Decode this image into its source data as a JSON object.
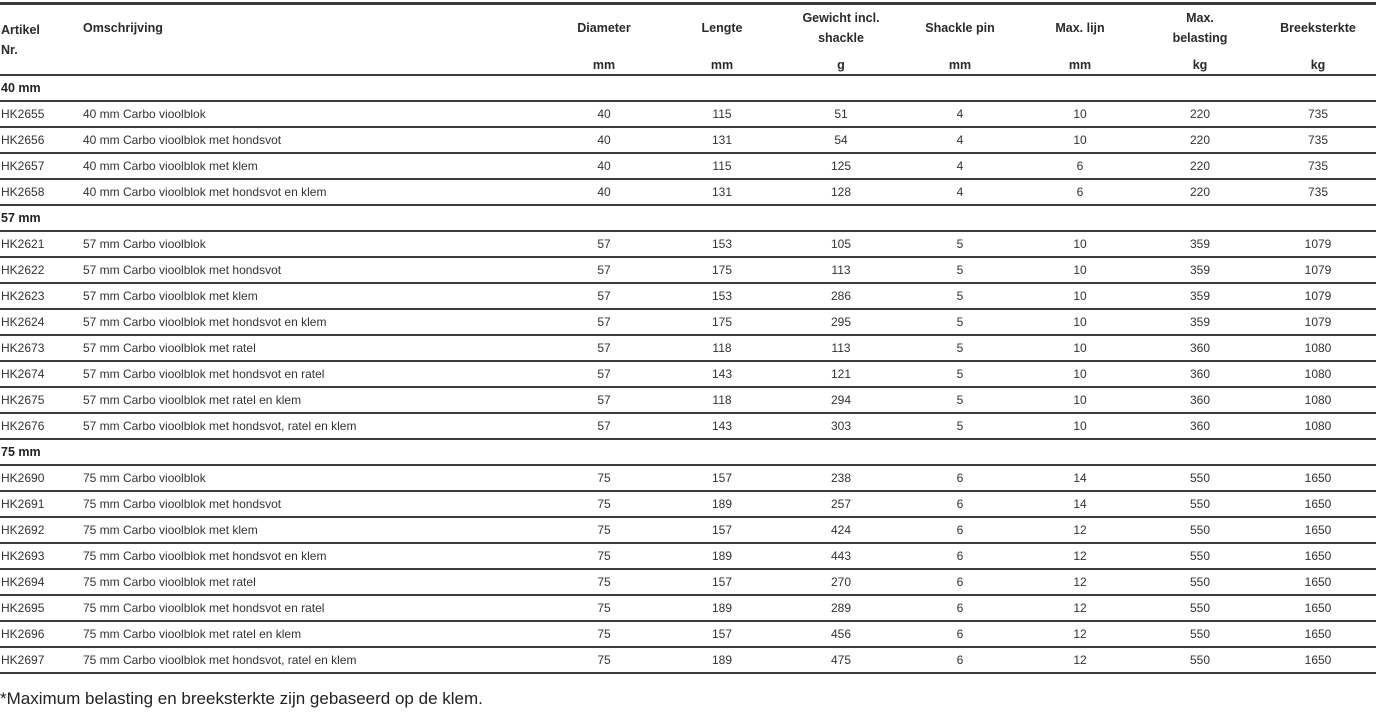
{
  "headers": {
    "artikel": "Artikel Nr.",
    "omschrijving": "Omschrijving",
    "diameter": "Diameter",
    "lengte": "Lengte",
    "gewicht": "Gewicht incl. shackle",
    "shackle_pin": "Shackle pin",
    "max_lijn": "Max. lijn",
    "max_belasting": "Max. belasting",
    "breeksterkte": "Breeksterkte"
  },
  "units": {
    "diameter": "mm",
    "lengte": "mm",
    "gewicht": "g",
    "shackle_pin": "mm",
    "max_lijn": "mm",
    "max_belasting": "kg",
    "breeksterkte": "kg"
  },
  "groups": [
    {
      "title": "40 mm",
      "rows": [
        [
          "HK2655",
          "40 mm Carbo vioolblok",
          "40",
          "115",
          "51",
          "4",
          "10",
          "220",
          "735"
        ],
        [
          "HK2656",
          "40 mm Carbo vioolblok met hondsvot",
          "40",
          "131",
          "54",
          "4",
          "10",
          "220",
          "735"
        ],
        [
          "HK2657",
          "40 mm Carbo vioolblok met klem",
          "40",
          "115",
          "125",
          "4",
          "6",
          "220",
          "735"
        ],
        [
          "HK2658",
          "40 mm Carbo vioolblok met hondsvot en klem",
          "40",
          "131",
          "128",
          "4",
          "6",
          "220",
          "735"
        ]
      ]
    },
    {
      "title": "57 mm",
      "rows": [
        [
          "HK2621",
          "57 mm Carbo vioolblok",
          "57",
          "153",
          "105",
          "5",
          "10",
          "359",
          "1079"
        ],
        [
          "HK2622",
          "57 mm Carbo vioolblok met hondsvot",
          "57",
          "175",
          "113",
          "5",
          "10",
          "359",
          "1079"
        ],
        [
          "HK2623",
          "57 mm Carbo vioolblok met klem",
          "57",
          "153",
          "286",
          "5",
          "10",
          "359",
          "1079"
        ],
        [
          "HK2624",
          "57 mm Carbo vioolblok met hondsvot en klem",
          "57",
          "175",
          "295",
          "5",
          "10",
          "359",
          "1079"
        ],
        [
          "HK2673",
          "57 mm Carbo vioolblok met ratel",
          "57",
          "118",
          "113",
          "5",
          "10",
          "360",
          "1080"
        ],
        [
          "HK2674",
          "57 mm Carbo vioolblok met hondsvot en ratel",
          "57",
          "143",
          "121",
          "5",
          "10",
          "360",
          "1080"
        ],
        [
          "HK2675",
          "57 mm Carbo vioolblok met ratel en klem",
          "57",
          "118",
          "294",
          "5",
          "10",
          "360",
          "1080"
        ],
        [
          "HK2676",
          "57 mm Carbo vioolblok met hondsvot, ratel en klem",
          "57",
          "143",
          "303",
          "5",
          "10",
          "360",
          "1080"
        ]
      ]
    },
    {
      "title": "75 mm",
      "rows": [
        [
          "HK2690",
          "75 mm Carbo vioolblok",
          "75",
          "157",
          "238",
          "6",
          "14",
          "550",
          "1650"
        ],
        [
          "HK2691",
          "75 mm Carbo vioolblok met hondsvot",
          "75",
          "189",
          "257",
          "6",
          "14",
          "550",
          "1650"
        ],
        [
          "HK2692",
          "75 mm Carbo vioolblok met klem",
          "75",
          "157",
          "424",
          "6",
          "12",
          "550",
          "1650"
        ],
        [
          "HK2693",
          "75 mm Carbo vioolblok met hondsvot en klem",
          "75",
          "189",
          "443",
          "6",
          "12",
          "550",
          "1650"
        ],
        [
          "HK2694",
          "75 mm Carbo vioolblok met ratel",
          "75",
          "157",
          "270",
          "6",
          "12",
          "550",
          "1650"
        ],
        [
          "HK2695",
          "75 mm Carbo vioolblok met hondsvot en ratel",
          "75",
          "189",
          "289",
          "6",
          "12",
          "550",
          "1650"
        ],
        [
          "HK2696",
          "75 mm Carbo vioolblok met ratel en klem",
          "75",
          "157",
          "456",
          "6",
          "12",
          "550",
          "1650"
        ],
        [
          "HK2697",
          "75 mm Carbo vioolblok met hondsvot, ratel en klem",
          "75",
          "189",
          "475",
          "6",
          "12",
          "550",
          "1650"
        ]
      ]
    }
  ],
  "footnote": "*Maximum belasting en breeksterkte zijn gebaseerd op de klem."
}
